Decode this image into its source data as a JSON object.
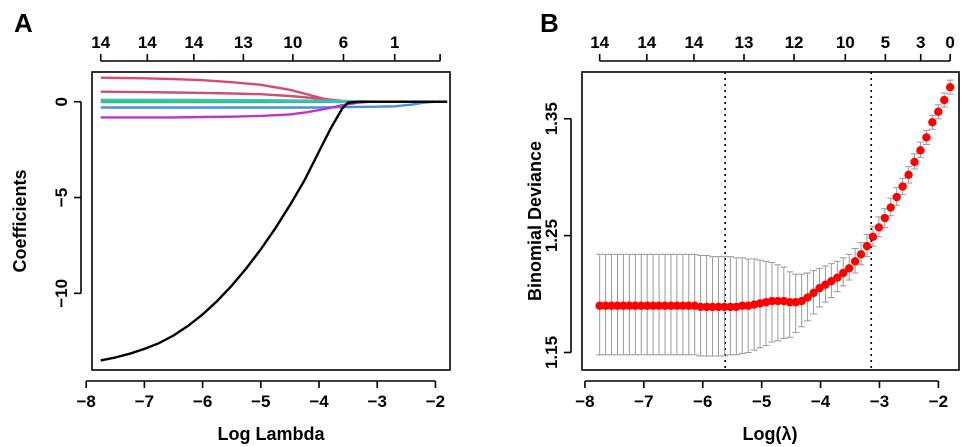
{
  "chart_data": [
    {
      "panel": "A",
      "type": "line",
      "xlabel": "Log Lambda",
      "ylabel": "Coefficients",
      "xlim": [
        -7.9,
        -1.75
      ],
      "ylim": [
        -14.0,
        1.55
      ],
      "x_ticks": [
        -8,
        -7,
        -6,
        -5,
        -4,
        -3,
        -2
      ],
      "y_ticks": [
        -10,
        -5,
        0
      ],
      "top_axis": {
        "positions": [
          -7.75,
          -6.95,
          -6.15,
          -5.3,
          -4.45,
          -3.58,
          -2.7,
          -1.92
        ],
        "labels": [
          "14",
          "14",
          "14",
          "13",
          "10",
          "6",
          "1",
          ""
        ]
      },
      "series": [
        {
          "color": "#000000",
          "x": [
            -7.75,
            -7.5,
            -7.25,
            -7,
            -6.75,
            -6.5,
            -6.25,
            -6,
            -5.75,
            -5.5,
            -5.25,
            -5,
            -4.75,
            -4.5,
            -4.25,
            -4,
            -3.8,
            -3.6,
            -3.5,
            -3.3,
            -3,
            -2.5,
            -2,
            -1.8
          ],
          "y": [
            -13.5,
            -13.35,
            -13.15,
            -12.9,
            -12.6,
            -12.2,
            -11.7,
            -11.1,
            -10.4,
            -9.6,
            -8.7,
            -7.7,
            -6.6,
            -5.4,
            -4.1,
            -2.6,
            -1.4,
            -0.35,
            -0.05,
            0,
            0,
            0,
            0,
            0
          ]
        },
        {
          "color": "#d64b6e",
          "x": [
            -7.75,
            -7,
            -6.5,
            -6,
            -5.5,
            -5,
            -4.5,
            -4.2,
            -3.9,
            -3.6,
            -3.3,
            -3,
            -2.5,
            -2,
            -1.8
          ],
          "y": [
            1.25,
            1.22,
            1.18,
            1.12,
            1.02,
            0.88,
            0.62,
            0.38,
            0.14,
            0.01,
            0,
            0,
            0,
            0,
            0
          ]
        },
        {
          "color": "#c9507a",
          "x": [
            -7.75,
            -7,
            -6.5,
            -6,
            -5.5,
            -5,
            -4.5,
            -4,
            -3.6,
            -3.3,
            -3,
            -2.5,
            -2,
            -1.8
          ],
          "y": [
            0.52,
            0.5,
            0.48,
            0.46,
            0.43,
            0.39,
            0.3,
            0.16,
            0.04,
            0,
            0,
            0,
            0,
            0
          ]
        },
        {
          "color": "#b2b233",
          "x": [
            -7.75,
            -7,
            -6,
            -5,
            -4.5,
            -4,
            -3.5,
            -3,
            -2.5,
            -2,
            -1.8
          ],
          "y": [
            0.1,
            0.1,
            0.09,
            0.08,
            0.07,
            0.05,
            0.02,
            0,
            0,
            0,
            0
          ]
        },
        {
          "color": "#2fbf7a",
          "x": [
            -7.75,
            -7,
            -6,
            -5,
            -4.5,
            -4,
            -3.5,
            -3,
            -2.5,
            -2,
            -1.8
          ],
          "y": [
            -0.02,
            -0.02,
            -0.02,
            -0.02,
            -0.01,
            -0.01,
            0,
            0,
            0,
            0,
            0
          ]
        },
        {
          "color": "#2ec4c4",
          "x": [
            -7.75,
            -7,
            -6,
            -5,
            -4.5,
            -4,
            -3.5,
            -3,
            -2.5,
            -2,
            -1.8
          ],
          "y": [
            0.08,
            0.08,
            0.07,
            0.06,
            0.05,
            0.03,
            0.01,
            0,
            0,
            0,
            0
          ]
        },
        {
          "color": "#4b8fd6",
          "x": [
            -7.75,
            -7,
            -6,
            -5,
            -4.5,
            -4,
            -3.5,
            -3,
            -2.7,
            -2.4,
            -2.2,
            -2,
            -1.8
          ],
          "y": [
            -0.3,
            -0.3,
            -0.3,
            -0.3,
            -0.3,
            -0.3,
            -0.28,
            -0.26,
            -0.24,
            -0.15,
            -0.05,
            0,
            0
          ]
        },
        {
          "color": "#c033c9",
          "x": [
            -7.75,
            -7,
            -6.5,
            -6,
            -5.5,
            -5,
            -4.5,
            -4.2,
            -3.9,
            -3.6,
            -3.3,
            -3.1,
            -3,
            -2.5,
            -2,
            -1.8
          ],
          "y": [
            -0.82,
            -0.82,
            -0.82,
            -0.8,
            -0.78,
            -0.74,
            -0.66,
            -0.55,
            -0.38,
            -0.18,
            -0.04,
            0,
            0,
            0,
            0,
            0
          ]
        }
      ]
    },
    {
      "panel": "B",
      "type": "scatter",
      "xlabel": "Log(λ)",
      "ylabel": "Binomial Deviance",
      "xlim": [
        -8.05,
        -1.65
      ],
      "ylim": [
        1.135,
        1.39
      ],
      "x_ticks": [
        -8,
        -7,
        -6,
        -5,
        -4,
        -3,
        -2
      ],
      "y_ticks": [
        1.15,
        1.25,
        1.35
      ],
      "y_tick_labels": [
        "1.15",
        "1.25",
        "1.35"
      ],
      "top_axis": {
        "positions": [
          -7.75,
          -6.95,
          -6.15,
          -5.3,
          -4.45,
          -3.58,
          -2.9,
          -2.3,
          -1.8
        ],
        "labels": [
          "14",
          "14",
          "14",
          "13",
          "12",
          "10",
          "5",
          "3",
          "0"
        ]
      },
      "vlines": [
        -5.62,
        -3.14
      ],
      "points": {
        "x_start": -7.75,
        "x_end": -1.8,
        "n": 60,
        "y": [
          1.19,
          1.19,
          1.19,
          1.19,
          1.19,
          1.19,
          1.19,
          1.19,
          1.19,
          1.19,
          1.19,
          1.19,
          1.19,
          1.19,
          1.19,
          1.19,
          1.19,
          1.189,
          1.189,
          1.189,
          1.189,
          1.189,
          1.189,
          1.189,
          1.19,
          1.19,
          1.191,
          1.192,
          1.193,
          1.194,
          1.194,
          1.194,
          1.193,
          1.193,
          1.194,
          1.197,
          1.201,
          1.205,
          1.208,
          1.211,
          1.214,
          1.218,
          1.222,
          1.228,
          1.234,
          1.241,
          1.249,
          1.257,
          1.265,
          1.274,
          1.283,
          1.292,
          1.302,
          1.313,
          1.323,
          1.334,
          1.347,
          1.356,
          1.366,
          1.377
        ],
        "err_lo": [
          0.042,
          0.042,
          0.042,
          0.042,
          0.042,
          0.042,
          0.042,
          0.042,
          0.042,
          0.042,
          0.042,
          0.042,
          0.042,
          0.042,
          0.042,
          0.042,
          0.042,
          0.042,
          0.042,
          0.042,
          0.042,
          0.042,
          0.041,
          0.041,
          0.041,
          0.04,
          0.039,
          0.038,
          0.037,
          0.035,
          0.034,
          0.032,
          0.03,
          0.026,
          0.022,
          0.02,
          0.018,
          0.016,
          0.015,
          0.014,
          0.012,
          0.011,
          0.01,
          0.01,
          0.009,
          0.009,
          0.008,
          0.008,
          0.008,
          0.007,
          0.007,
          0.007,
          0.007,
          0.006,
          0.006,
          0.006,
          0.006,
          0.006,
          0.006,
          0.006
        ],
        "err_hi": [
          0.044,
          0.044,
          0.044,
          0.044,
          0.044,
          0.044,
          0.044,
          0.044,
          0.044,
          0.044,
          0.044,
          0.044,
          0.044,
          0.044,
          0.044,
          0.044,
          0.044,
          0.044,
          0.044,
          0.043,
          0.043,
          0.043,
          0.043,
          0.042,
          0.041,
          0.04,
          0.039,
          0.037,
          0.035,
          0.033,
          0.031,
          0.029,
          0.026,
          0.024,
          0.023,
          0.021,
          0.019,
          0.017,
          0.016,
          0.015,
          0.014,
          0.013,
          0.012,
          0.011,
          0.01,
          0.01,
          0.009,
          0.009,
          0.008,
          0.008,
          0.008,
          0.007,
          0.007,
          0.007,
          0.007,
          0.006,
          0.006,
          0.006,
          0.006,
          0.006
        ]
      }
    }
  ]
}
